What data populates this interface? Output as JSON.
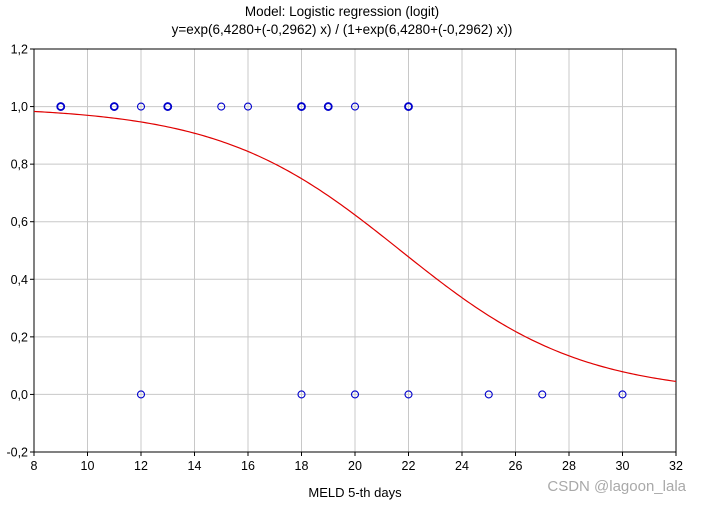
{
  "chart_data": {
    "type": "scatter",
    "title": "Model: Logistic regression (logit)",
    "subtitle": "y=exp(6,4280+(-0,2962) x) / (1+exp(6,4280+(-0,2962) x))",
    "xlabel": "MELD 5-th days",
    "ylabel": "",
    "xlim": [
      8,
      32
    ],
    "ylim": [
      -0.2,
      1.2
    ],
    "x_ticks": [
      "8",
      "10",
      "12",
      "14",
      "16",
      "18",
      "20",
      "22",
      "24",
      "26",
      "28",
      "30",
      "32"
    ],
    "y_ticks": [
      "-0,2",
      "0,0",
      "0,2",
      "0,4",
      "0,6",
      "0,8",
      "1,0",
      "1,2"
    ],
    "grid": true,
    "points": [
      {
        "x": 9,
        "y": 1
      },
      {
        "x": 11,
        "y": 1
      },
      {
        "x": 12,
        "y": 1
      },
      {
        "x": 13,
        "y": 1
      },
      {
        "x": 15,
        "y": 1
      },
      {
        "x": 16,
        "y": 1
      },
      {
        "x": 18,
        "y": 1
      },
      {
        "x": 19,
        "y": 1
      },
      {
        "x": 20,
        "y": 1
      },
      {
        "x": 22,
        "y": 1
      },
      {
        "x": 12,
        "y": 0
      },
      {
        "x": 18,
        "y": 0
      },
      {
        "x": 20,
        "y": 0
      },
      {
        "x": 22,
        "y": 0
      },
      {
        "x": 25,
        "y": 0
      },
      {
        "x": 27,
        "y": 0
      },
      {
        "x": 30,
        "y": 0
      }
    ],
    "double_marked_points": [
      {
        "x": 9,
        "y": 1
      },
      {
        "x": 11,
        "y": 1
      },
      {
        "x": 13,
        "y": 1
      },
      {
        "x": 18,
        "y": 1
      },
      {
        "x": 19,
        "y": 1
      },
      {
        "x": 22,
        "y": 1
      }
    ],
    "fit_curve": {
      "model": "logistic",
      "intercept": 6.428,
      "slope": -0.2962,
      "color": "#e00000"
    },
    "point_color": "#0000cc",
    "grid_color": "#c8c8c8"
  },
  "watermark": "CSDN @lagoon_lala"
}
